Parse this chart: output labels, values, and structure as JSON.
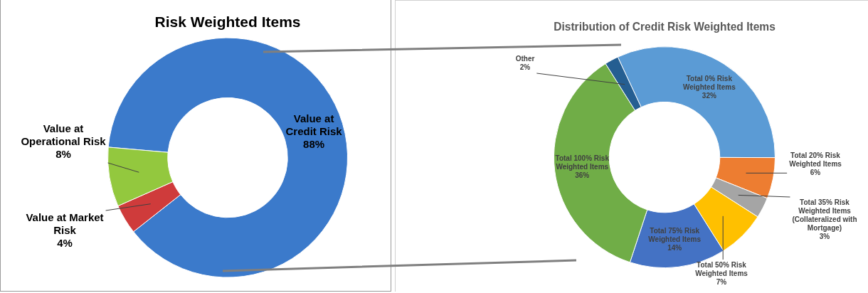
{
  "chart_data": [
    {
      "type": "donut",
      "title": "Risk Weighted Items",
      "categories": [
        "Value at Credit Risk",
        "Value at Market Risk",
        "Value at Operational Risk"
      ],
      "values": [
        88,
        4,
        8
      ],
      "value_labels": [
        "88%",
        "4%",
        "8%"
      ],
      "colors": [
        "#3b7acb",
        "#cf3b3b",
        "#93c83e"
      ],
      "legend": false
    },
    {
      "type": "donut",
      "title": "Distribution of Credit Risk Weighted Items",
      "categories": [
        "Total 0% Risk Weighted Items",
        "Total 20% Risk Weighted Items",
        "Total 35% Risk Weighted Items (Collateralized with Mortgage)",
        "Total 50% Risk Weighted Items",
        "Total 75% Risk Weighted Items",
        "Total 100% Risk Weighted Items",
        "Other"
      ],
      "values": [
        32,
        6,
        3,
        7,
        14,
        36,
        2
      ],
      "value_labels": [
        "32%",
        "6%",
        "3%",
        "7%",
        "14%",
        "36%",
        "2%"
      ],
      "colors": [
        "#5b9bd5",
        "#ed7d31",
        "#a5a5a5",
        "#ffc000",
        "#4472c4",
        "#70ad47",
        "#255e91"
      ],
      "legend": false
    }
  ]
}
